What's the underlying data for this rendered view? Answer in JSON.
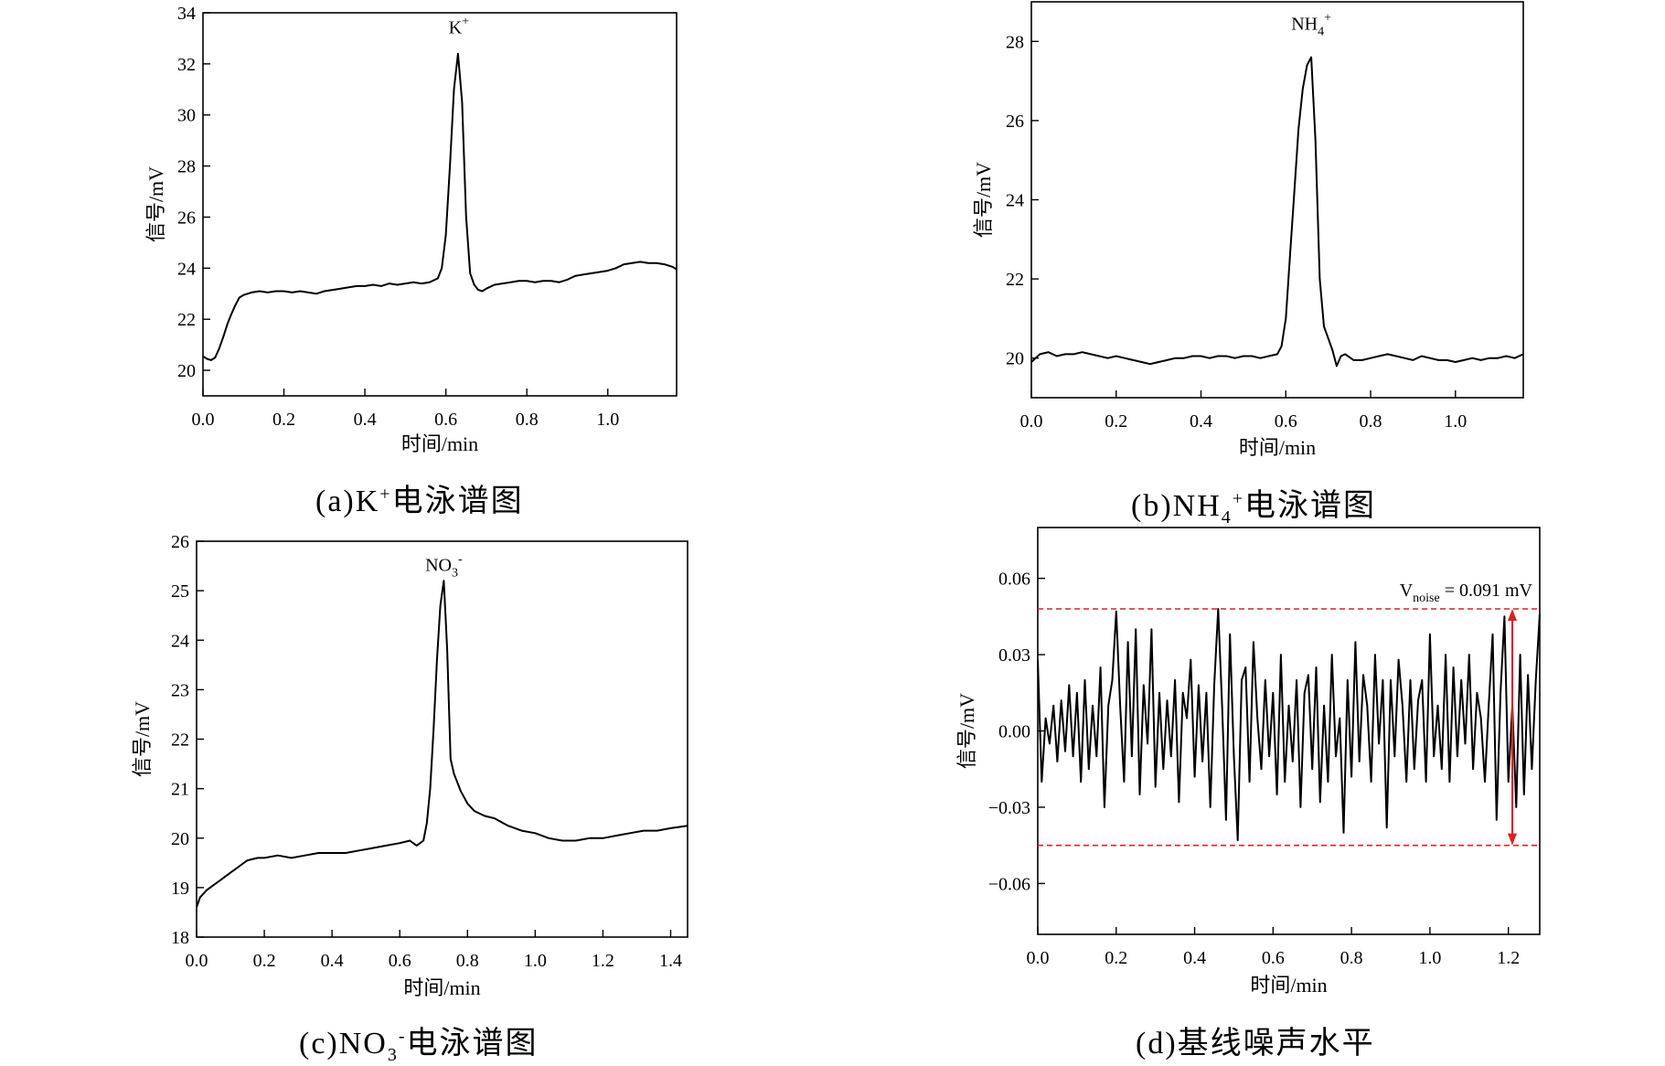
{
  "chart_data": [
    {
      "id": "a",
      "type": "line",
      "caption": {
        "prefix": "(a)K",
        "sup": "+",
        "suffix": "电泳谱图"
      },
      "xlabel": "时间/min",
      "ylabel": "信号/mV",
      "xlim": [
        0,
        1.17
      ],
      "ylim": [
        19,
        34
      ],
      "xticks": [
        0.0,
        0.2,
        0.4,
        0.6,
        0.8,
        1.0
      ],
      "yticks": [
        20,
        22,
        24,
        26,
        28,
        30,
        32,
        34
      ],
      "xtick_decimals": 1,
      "ytick_decimals": 0,
      "annotations": [
        {
          "base": "K",
          "sub": "",
          "sup": "+",
          "x": 0.632,
          "y": 33.2
        }
      ],
      "series": [
        {
          "x": [
            0.0,
            0.01,
            0.02,
            0.03,
            0.04,
            0.05,
            0.06,
            0.07,
            0.08,
            0.09,
            0.1,
            0.11,
            0.12,
            0.14,
            0.16,
            0.18,
            0.2,
            0.22,
            0.24,
            0.26,
            0.28,
            0.3,
            0.32,
            0.34,
            0.36,
            0.38,
            0.4,
            0.42,
            0.44,
            0.46,
            0.48,
            0.5,
            0.52,
            0.54,
            0.56,
            0.58,
            0.59,
            0.6,
            0.61,
            0.62,
            0.63,
            0.64,
            0.65,
            0.66,
            0.67,
            0.68,
            0.69,
            0.7,
            0.72,
            0.74,
            0.76,
            0.78,
            0.8,
            0.82,
            0.84,
            0.86,
            0.88,
            0.9,
            0.92,
            0.94,
            0.96,
            0.98,
            1.0,
            1.02,
            1.04,
            1.06,
            1.08,
            1.1,
            1.12,
            1.14,
            1.16,
            1.17
          ],
          "y": [
            20.55,
            20.45,
            20.4,
            20.5,
            20.85,
            21.3,
            21.8,
            22.2,
            22.55,
            22.85,
            22.95,
            23.0,
            23.05,
            23.1,
            23.05,
            23.1,
            23.1,
            23.05,
            23.1,
            23.05,
            23.0,
            23.1,
            23.15,
            23.2,
            23.25,
            23.3,
            23.3,
            23.35,
            23.3,
            23.4,
            23.35,
            23.4,
            23.45,
            23.4,
            23.45,
            23.6,
            24.0,
            25.3,
            28.0,
            31.0,
            32.4,
            30.5,
            26.0,
            23.8,
            23.35,
            23.15,
            23.1,
            23.2,
            23.35,
            23.4,
            23.45,
            23.5,
            23.5,
            23.45,
            23.5,
            23.5,
            23.45,
            23.55,
            23.7,
            23.75,
            23.8,
            23.85,
            23.9,
            24.0,
            24.15,
            24.2,
            24.25,
            24.2,
            24.2,
            24.15,
            24.05,
            23.95
          ]
        }
      ]
    },
    {
      "id": "b",
      "type": "line",
      "caption": {
        "prefix": "(b)NH",
        "sub": "4",
        "sup": "+",
        "suffix": "电泳谱图"
      },
      "xlabel": "时间/min",
      "ylabel": "信号/mV",
      "xlim": [
        0,
        1.16
      ],
      "ylim": [
        19,
        29
      ],
      "xticks": [
        0.0,
        0.2,
        0.4,
        0.6,
        0.8,
        1.0
      ],
      "yticks": [
        20,
        22,
        24,
        26,
        28
      ],
      "xtick_decimals": 1,
      "ytick_decimals": 0,
      "annotations": [
        {
          "base": "NH",
          "sub": "4",
          "sup": "+",
          "x": 0.66,
          "y": 28.3
        }
      ],
      "series": [
        {
          "x": [
            0.0,
            0.02,
            0.04,
            0.06,
            0.08,
            0.1,
            0.12,
            0.14,
            0.16,
            0.18,
            0.2,
            0.22,
            0.24,
            0.26,
            0.28,
            0.3,
            0.32,
            0.34,
            0.36,
            0.38,
            0.4,
            0.42,
            0.44,
            0.46,
            0.48,
            0.5,
            0.52,
            0.54,
            0.56,
            0.58,
            0.59,
            0.6,
            0.61,
            0.62,
            0.63,
            0.64,
            0.65,
            0.66,
            0.67,
            0.68,
            0.69,
            0.7,
            0.71,
            0.72,
            0.73,
            0.74,
            0.76,
            0.78,
            0.8,
            0.82,
            0.84,
            0.86,
            0.88,
            0.9,
            0.92,
            0.94,
            0.96,
            0.98,
            1.0,
            1.02,
            1.04,
            1.06,
            1.08,
            1.1,
            1.12,
            1.14,
            1.16
          ],
          "y": [
            19.9,
            20.1,
            20.15,
            20.05,
            20.1,
            20.1,
            20.15,
            20.1,
            20.05,
            20.0,
            20.05,
            20.0,
            19.95,
            19.9,
            19.85,
            19.9,
            19.95,
            20.0,
            20.0,
            20.05,
            20.05,
            20.0,
            20.05,
            20.05,
            20.0,
            20.05,
            20.05,
            20.0,
            20.05,
            20.1,
            20.3,
            21.0,
            22.6,
            24.2,
            25.8,
            26.8,
            27.4,
            27.6,
            25.5,
            22.0,
            20.8,
            20.5,
            20.2,
            19.8,
            20.05,
            20.1,
            19.95,
            19.95,
            20.0,
            20.05,
            20.1,
            20.05,
            20.0,
            19.95,
            20.05,
            20.0,
            19.95,
            19.95,
            19.9,
            19.95,
            20.0,
            19.95,
            20.0,
            20.0,
            20.05,
            20.0,
            20.1
          ]
        }
      ]
    },
    {
      "id": "c",
      "type": "line",
      "caption": {
        "prefix": "(c)NO",
        "sub": "3",
        "sup": "-",
        "suffix": "电泳谱图"
      },
      "xlabel": "时间/min",
      "ylabel": "信号/mV",
      "xlim": [
        0,
        1.45
      ],
      "ylim": [
        18,
        26
      ],
      "xticks": [
        0.0,
        0.2,
        0.4,
        0.6,
        0.8,
        1.0,
        1.2,
        1.4
      ],
      "yticks": [
        18,
        19,
        20,
        21,
        22,
        23,
        24,
        25,
        26
      ],
      "xtick_decimals": 1,
      "ytick_decimals": 0,
      "annotations": [
        {
          "base": "NO",
          "sub": "3",
          "sup": "-",
          "x": 0.73,
          "y": 25.4
        }
      ],
      "series": [
        {
          "x": [
            0.0,
            0.01,
            0.03,
            0.05,
            0.07,
            0.09,
            0.11,
            0.13,
            0.15,
            0.18,
            0.2,
            0.24,
            0.28,
            0.32,
            0.36,
            0.4,
            0.44,
            0.48,
            0.52,
            0.56,
            0.6,
            0.63,
            0.65,
            0.67,
            0.68,
            0.69,
            0.7,
            0.71,
            0.72,
            0.73,
            0.74,
            0.75,
            0.76,
            0.78,
            0.8,
            0.82,
            0.85,
            0.88,
            0.92,
            0.96,
            1.0,
            1.04,
            1.08,
            1.12,
            1.16,
            1.2,
            1.24,
            1.28,
            1.32,
            1.36,
            1.4,
            1.45
          ],
          "y": [
            18.6,
            18.8,
            18.95,
            19.05,
            19.15,
            19.25,
            19.35,
            19.45,
            19.55,
            19.6,
            19.6,
            19.65,
            19.6,
            19.65,
            19.7,
            19.7,
            19.7,
            19.75,
            19.8,
            19.85,
            19.9,
            19.95,
            19.85,
            19.95,
            20.3,
            21.0,
            22.2,
            23.6,
            24.7,
            25.2,
            23.8,
            21.6,
            21.3,
            20.95,
            20.7,
            20.55,
            20.45,
            20.4,
            20.25,
            20.15,
            20.1,
            20.0,
            19.95,
            19.95,
            20.0,
            20.0,
            20.05,
            20.1,
            20.15,
            20.15,
            20.2,
            20.25
          ]
        }
      ]
    },
    {
      "id": "d",
      "type": "line",
      "caption": {
        "prefix": "(d)基线噪声水平",
        "suffix": ""
      },
      "xlabel": "时间/min",
      "ylabel": "信号/mV",
      "xlim": [
        0,
        1.28
      ],
      "ylim": [
        -0.08,
        0.08
      ],
      "xticks": [
        0.0,
        0.2,
        0.4,
        0.6,
        0.8,
        1.0,
        1.2
      ],
      "yticks": [
        -0.06,
        -0.03,
        0.0,
        0.03,
        0.06
      ],
      "xtick_decimals": 1,
      "ytick_decimals": 2,
      "noise_band": {
        "upper": 0.048,
        "lower": -0.045,
        "arrow_x": 1.21,
        "color": "#e02020",
        "label": {
          "base": "V",
          "sub": "noise",
          "rest": " = 0.091 mV"
        }
      },
      "series": [
        {
          "x": [
            0.0,
            0.01,
            0.02,
            0.03,
            0.04,
            0.05,
            0.06,
            0.07,
            0.08,
            0.09,
            0.1,
            0.11,
            0.12,
            0.13,
            0.14,
            0.15,
            0.16,
            0.17,
            0.18,
            0.19,
            0.2,
            0.21,
            0.22,
            0.23,
            0.24,
            0.25,
            0.26,
            0.27,
            0.28,
            0.29,
            0.3,
            0.31,
            0.32,
            0.33,
            0.34,
            0.35,
            0.36,
            0.37,
            0.38,
            0.39,
            0.4,
            0.41,
            0.42,
            0.43,
            0.44,
            0.45,
            0.46,
            0.47,
            0.48,
            0.49,
            0.5,
            0.51,
            0.52,
            0.53,
            0.54,
            0.55,
            0.56,
            0.57,
            0.58,
            0.59,
            0.6,
            0.61,
            0.62,
            0.63,
            0.64,
            0.65,
            0.66,
            0.67,
            0.68,
            0.69,
            0.7,
            0.71,
            0.72,
            0.73,
            0.74,
            0.75,
            0.76,
            0.77,
            0.78,
            0.79,
            0.8,
            0.81,
            0.82,
            0.83,
            0.84,
            0.85,
            0.86,
            0.87,
            0.88,
            0.89,
            0.9,
            0.91,
            0.92,
            0.93,
            0.94,
            0.95,
            0.96,
            0.97,
            0.98,
            0.99,
            1.0,
            1.01,
            1.02,
            1.03,
            1.04,
            1.05,
            1.06,
            1.07,
            1.08,
            1.09,
            1.1,
            1.11,
            1.12,
            1.13,
            1.14,
            1.15,
            1.16,
            1.17,
            1.18,
            1.19,
            1.2,
            1.21,
            1.22,
            1.23,
            1.24,
            1.25,
            1.26,
            1.27,
            1.28
          ],
          "y": [
            0.028,
            -0.02,
            0.005,
            -0.005,
            0.01,
            -0.012,
            0.012,
            -0.008,
            0.018,
            -0.01,
            0.015,
            -0.02,
            0.02,
            -0.015,
            0.01,
            -0.01,
            0.025,
            -0.03,
            0.01,
            0.02,
            0.047,
            0.01,
            -0.02,
            0.035,
            -0.01,
            0.04,
            -0.025,
            0.018,
            -0.005,
            0.04,
            -0.022,
            0.015,
            -0.015,
            0.012,
            -0.01,
            0.02,
            -0.028,
            0.015,
            0.005,
            0.028,
            -0.018,
            0.018,
            -0.012,
            0.015,
            -0.03,
            0.018,
            0.048,
            0.01,
            -0.035,
            0.038,
            -0.01,
            -0.043,
            0.02,
            0.025,
            -0.02,
            0.035,
            0.005,
            -0.015,
            0.02,
            -0.01,
            0.015,
            -0.025,
            0.03,
            -0.02,
            0.01,
            -0.012,
            0.02,
            -0.03,
            0.015,
            0.022,
            -0.015,
            0.025,
            -0.028,
            0.01,
            -0.02,
            0.03,
            -0.01,
            0.005,
            -0.04,
            0.02,
            -0.018,
            0.035,
            -0.012,
            0.022,
            0.01,
            -0.02,
            0.03,
            -0.005,
            0.02,
            -0.038,
            0.02,
            -0.01,
            0.028,
            0.01,
            -0.02,
            0.02,
            -0.015,
            0.012,
            0.02,
            -0.02,
            0.038,
            -0.01,
            0.01,
            -0.015,
            0.03,
            -0.02,
            0.025,
            -0.01,
            0.02,
            -0.005,
            0.03,
            -0.015,
            0.015,
            0.005,
            -0.02,
            0.01,
            0.038,
            -0.035,
            0.015,
            0.045,
            -0.02,
            0.01,
            -0.03,
            0.03,
            -0.025,
            0.022,
            -0.015,
            0.02,
            0.046
          ]
        }
      ]
    }
  ]
}
